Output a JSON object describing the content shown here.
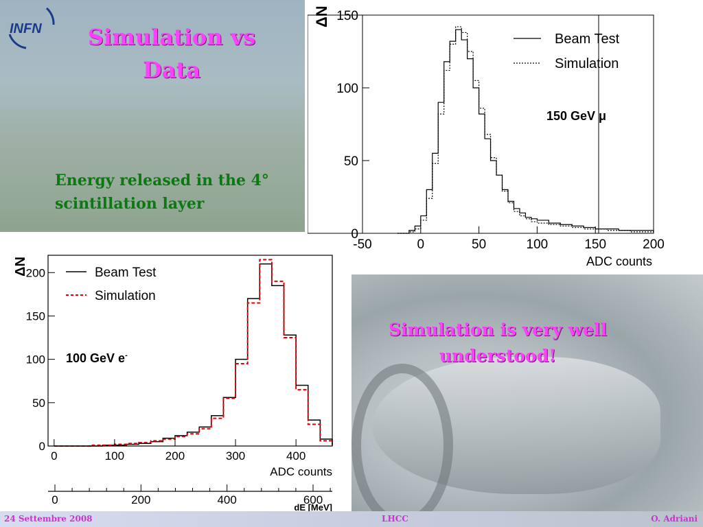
{
  "slide": {
    "title": "Simulation vs Data",
    "subtitle": "Energy released in the 4° scintillation layer",
    "conclusion": "Simulation is very well understood!",
    "logo_text": "INFN"
  },
  "footer": {
    "date": "24 Settembre 2008",
    "event": "LHCC",
    "author": "O. Adriani"
  },
  "colors": {
    "title": "#ff40ff",
    "subtitle": "#0a7a10",
    "simulation_red": "#e00000"
  },
  "chart_data": [
    {
      "type": "line",
      "annotation": "150 GeV μ",
      "xlabel": "ADC counts",
      "ylabel": "ΔN",
      "xlim": [
        -50,
        200
      ],
      "ylim": [
        0,
        150
      ],
      "xticks": [
        "-50",
        "0",
        "50",
        "100",
        "150",
        "200"
      ],
      "yticks": [
        "0",
        "50",
        "100",
        "150"
      ],
      "legend_position": "top-right",
      "x": [
        -20,
        -10,
        -5,
        0,
        5,
        10,
        15,
        20,
        25,
        30,
        35,
        40,
        45,
        50,
        55,
        60,
        65,
        70,
        75,
        80,
        85,
        90,
        95,
        100,
        110,
        120,
        130,
        140,
        150,
        160,
        170,
        180,
        190,
        200
      ],
      "series": [
        {
          "name": "Beam Test",
          "style": "solid",
          "values": [
            0,
            2,
            5,
            12,
            30,
            55,
            90,
            118,
            132,
            140,
            133,
            120,
            100,
            82,
            65,
            50,
            40,
            30,
            22,
            17,
            14,
            11,
            10,
            9,
            7,
            6,
            5,
            4,
            3,
            3,
            2,
            2,
            2,
            1
          ]
        },
        {
          "name": "Simulation",
          "style": "dotted",
          "values": [
            0,
            1,
            3,
            9,
            24,
            48,
            82,
            112,
            130,
            142,
            138,
            125,
            105,
            86,
            68,
            52,
            40,
            29,
            21,
            15,
            12,
            10,
            8,
            7,
            6,
            5,
            4,
            3,
            3,
            2,
            2,
            1,
            1,
            1
          ]
        }
      ]
    },
    {
      "type": "line",
      "annotation": "100 GeV e",
      "annotation_sup": "-",
      "xlabel": "ADC counts",
      "ylabel": "ΔN",
      "xlim": [
        -10,
        460
      ],
      "ylim": [
        0,
        220
      ],
      "xticks": [
        "0",
        "100",
        "200",
        "300",
        "400"
      ],
      "yticks": [
        "0",
        "50",
        "100",
        "150",
        "200"
      ],
      "legend_position": "top-left",
      "x": [
        0,
        20,
        40,
        60,
        80,
        100,
        120,
        140,
        160,
        180,
        200,
        220,
        240,
        260,
        280,
        300,
        320,
        340,
        360,
        380,
        400,
        420,
        440,
        460
      ],
      "series": [
        {
          "name": "Beam Test",
          "style": "solid",
          "values": [
            0,
            0,
            0,
            0,
            1,
            1,
            2,
            3,
            5,
            9,
            12,
            16,
            22,
            35,
            56,
            100,
            170,
            210,
            185,
            128,
            70,
            30,
            8,
            1
          ]
        },
        {
          "name": "Simulation",
          "style": "dashed-red",
          "values": [
            0,
            0,
            0,
            1,
            1,
            2,
            3,
            4,
            6,
            8,
            11,
            14,
            20,
            32,
            55,
            95,
            165,
            215,
            190,
            125,
            65,
            25,
            6,
            1
          ]
        }
      ],
      "secondary_axis": {
        "xlabel": "dE [MeV]",
        "xlim": [
          0,
          600
        ],
        "xticks": [
          "0",
          "200",
          "400",
          "600"
        ]
      }
    }
  ]
}
